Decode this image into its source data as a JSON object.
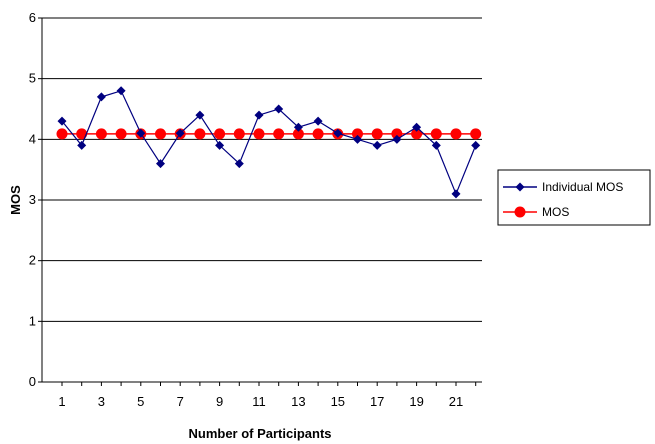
{
  "chart_data": {
    "type": "line",
    "title": "",
    "xlabel": "Number of Participants",
    "ylabel": "MOS",
    "x": [
      1,
      2,
      3,
      4,
      5,
      6,
      7,
      8,
      9,
      10,
      11,
      12,
      13,
      14,
      15,
      16,
      17,
      18,
      19,
      20,
      21,
      22
    ],
    "x_tick_labels": [
      "1",
      "3",
      "5",
      "7",
      "9",
      "11",
      "13",
      "15",
      "17",
      "19",
      "21"
    ],
    "y_tick_labels": [
      "0",
      "1",
      "2",
      "3",
      "4",
      "5",
      "6"
    ],
    "xlim": [
      1,
      22
    ],
    "ylim": [
      0,
      6
    ],
    "grid": "horizontal",
    "legend_position": "right",
    "series": [
      {
        "name": "Individual MOS",
        "color": "#000080",
        "marker": "diamond",
        "values": [
          4.3,
          3.9,
          4.7,
          4.8,
          4.1,
          3.6,
          4.1,
          4.4,
          3.9,
          3.6,
          4.4,
          4.5,
          4.2,
          4.3,
          4.1,
          4.0,
          3.9,
          4.0,
          4.2,
          3.9,
          3.1,
          3.9
        ]
      },
      {
        "name": "MOS",
        "color": "#ff0000",
        "marker": "circle",
        "values": [
          4.09,
          4.09,
          4.09,
          4.09,
          4.09,
          4.09,
          4.09,
          4.09,
          4.09,
          4.09,
          4.09,
          4.09,
          4.09,
          4.09,
          4.09,
          4.09,
          4.09,
          4.09,
          4.09,
          4.09,
          4.09,
          4.09
        ]
      }
    ]
  }
}
